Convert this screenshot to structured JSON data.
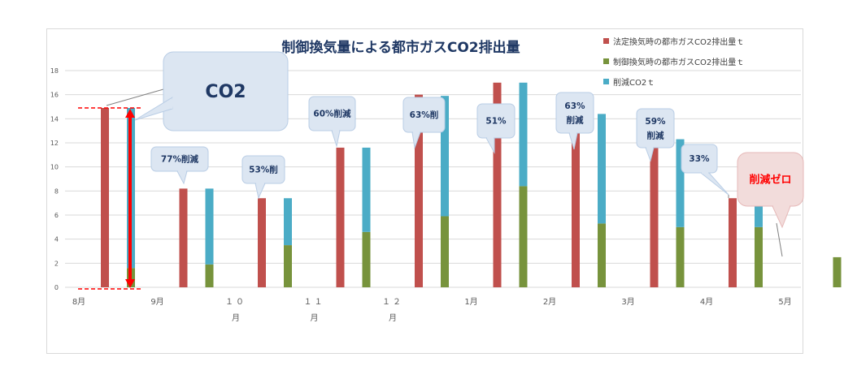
{
  "chart_data": {
    "type": "bar",
    "title": "制御換気量による都市ガスCO2排出量",
    "categories": [
      "8月",
      "9月",
      "１０月",
      "１１月",
      "１２月",
      "1月",
      "2月",
      "3月",
      "4月",
      "5月"
    ],
    "ylim": [
      0,
      18
    ],
    "yticks": [
      "0",
      "2",
      "4",
      "6",
      "8",
      "10",
      "12",
      "14",
      "16",
      "18"
    ],
    "grid": true,
    "legend_position": "top-right",
    "series": [
      {
        "name": "法定換気時の都市ガスCO2排出量ｔ",
        "color": "#c0504d",
        "values": [
          14.9,
          8.2,
          7.4,
          11.6,
          16.0,
          17.0,
          14.4,
          12.3,
          7.4,
          null
        ]
      },
      {
        "name": "制御換気時の都市ガスCO2排出量ｔ",
        "color": "#77933c",
        "values": [
          1.6,
          1.9,
          3.5,
          4.6,
          5.9,
          8.4,
          5.3,
          5.0,
          5.0,
          2.5
        ]
      },
      {
        "name": "削減CO2ｔ",
        "color": "#4bacc6",
        "values": [
          13.3,
          6.3,
          3.9,
          7.0,
          10.0,
          8.6,
          9.1,
          7.3,
          2.4,
          null
        ]
      }
    ],
    "annotations": [
      {
        "text": "CO2",
        "category": "8月"
      },
      {
        "text": "77%削減",
        "category": "9月"
      },
      {
        "text": "53%削",
        "category": "１０月"
      },
      {
        "text": "60%削減",
        "category": "１１月"
      },
      {
        "text": "63%削",
        "category": "１２月"
      },
      {
        "text": "51%",
        "category": "1月"
      },
      {
        "text": "63%\n削減",
        "category": "2月"
      },
      {
        "text": "59%\n削減",
        "category": "3月"
      },
      {
        "text": "33%",
        "category": "4月"
      },
      {
        "text": "削減ゼロ",
        "category": "5月"
      }
    ]
  },
  "colors": {
    "arrow": "#ff0000",
    "callout_fill": "#dce6f2",
    "callout_stroke": "#b9cde5",
    "callout_text": "#1f3864",
    "zero_callout_fill": "#f2dcdb",
    "zero_callout_stroke": "#e6b9b8",
    "zero_callout_text": "#ff0000",
    "title_color": "#1f3864",
    "axis_text": "#595959",
    "grid": "#d9d9d9"
  }
}
